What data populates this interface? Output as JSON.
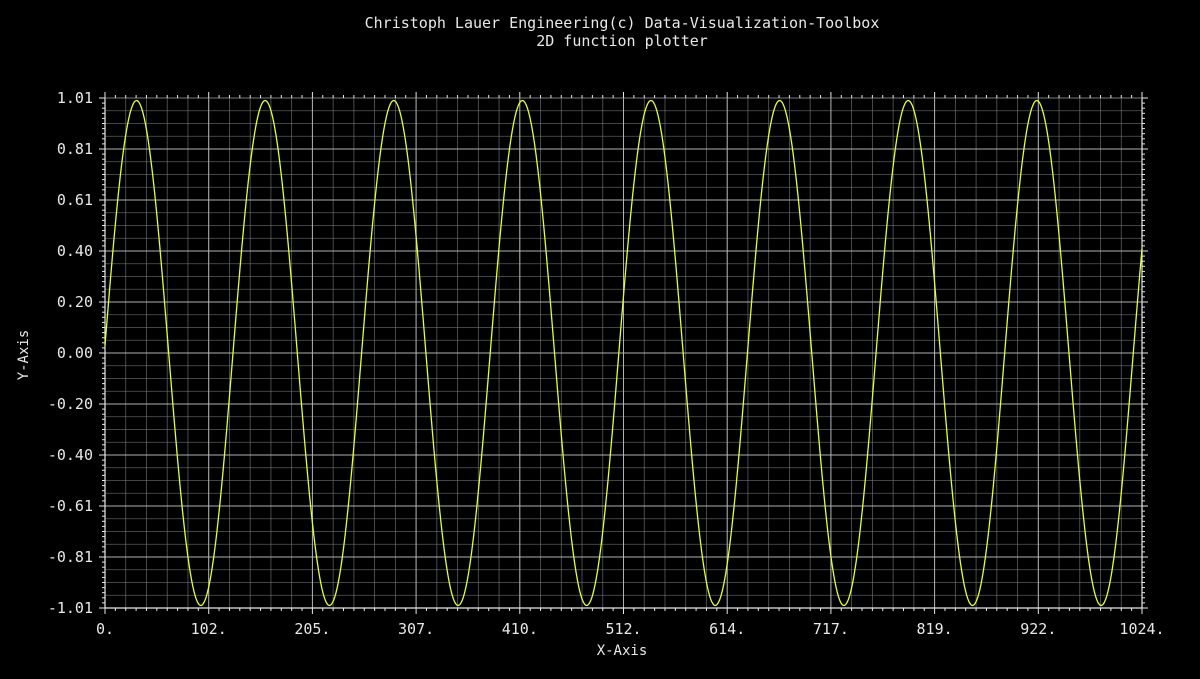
{
  "colors": {
    "background": "#000000",
    "text": "#e8e8e8",
    "grid": "#7a7a7a",
    "curve": "#e6ff2e"
  },
  "chart_data": {
    "type": "line",
    "title": "Christoph Lauer Engineering(c) Data-Visualization-Toolbox",
    "subtitle": "2D function plotter",
    "xlabel": "X-Axis",
    "ylabel": "Y-Axis",
    "xlim": [
      0,
      1024
    ],
    "ylim": [
      -1.01,
      1.01
    ],
    "grid": true,
    "x_tick_labels": [
      "0.",
      "102.",
      "205.",
      "307.",
      "410.",
      "512.",
      "614.",
      "717.",
      "819.",
      "922.",
      "1024."
    ],
    "y_tick_labels": [
      "1.01",
      "0.81",
      "0.61",
      "0.40",
      "0.20",
      "0.00",
      "-0.20",
      "-0.40",
      "-0.61",
      "-0.81",
      "-1.01"
    ],
    "series": [
      {
        "function": "sin",
        "amplitude": 1.0,
        "period": 127,
        "phase_start": 0.03,
        "x_start": 0,
        "x_end": 1024,
        "samples": 1025
      }
    ]
  }
}
